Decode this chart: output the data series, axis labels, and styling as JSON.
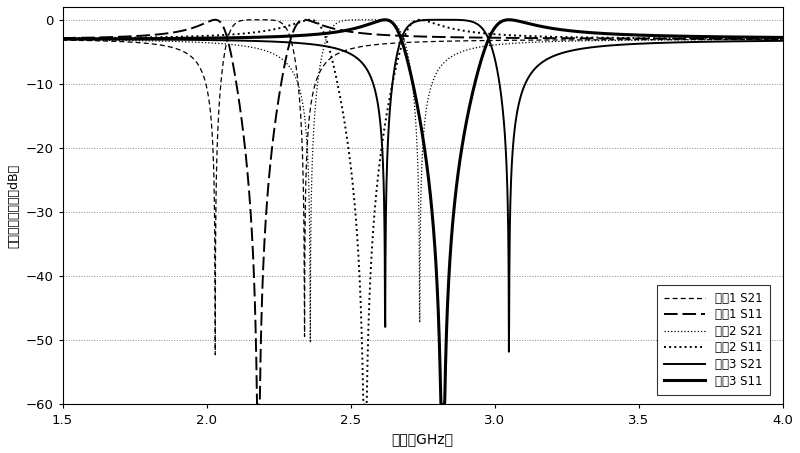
{
  "xlim": [
    1.5,
    4.0
  ],
  "ylim": [
    -60,
    2
  ],
  "xlabel": "频率（GHz）",
  "ylabel": "滤波器散射参量（dB）",
  "xticks": [
    1.5,
    2.0,
    2.5,
    3.0,
    3.5,
    4.0
  ],
  "yticks": [
    0,
    -10,
    -20,
    -30,
    -40,
    -50,
    -60
  ],
  "legend_labels": [
    "实兣1 S21",
    "实兣1 S11",
    "实兣2 S21",
    "实兣2 S11",
    "实兣3 S21",
    "实兣3 S11"
  ],
  "curves": {
    "ex1": {
      "f0": 2.18,
      "bw": 0.36,
      "fz1": 2.03,
      "fz2": 2.34
    },
    "ex2": {
      "f0": 2.55,
      "bw": 0.44,
      "fz1": 2.36,
      "fz2": 2.74
    },
    "ex3": {
      "f0": 2.82,
      "bw": 0.54,
      "fz1": 2.62,
      "fz2": 3.05
    }
  }
}
